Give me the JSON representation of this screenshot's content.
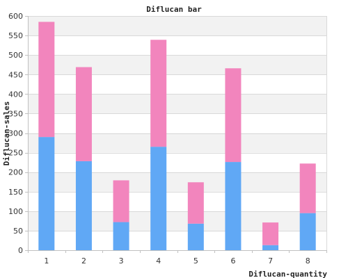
{
  "chart_data": {
    "type": "bar",
    "stacked": true,
    "title": "Diflucan bar",
    "xlabel": "Diflucan-quantity",
    "ylabel": "Diflucan-sales",
    "categories": [
      "1",
      "2",
      "3",
      "4",
      "5",
      "6",
      "7",
      "8"
    ],
    "ylim": [
      0,
      600
    ],
    "yticks": [
      0,
      50,
      100,
      150,
      200,
      250,
      300,
      350,
      400,
      450,
      500,
      550,
      600
    ],
    "grid": true,
    "legend": "none",
    "series": [
      {
        "values": [
          290,
          228,
          72,
          265,
          68,
          226,
          13,
          95
        ],
        "color": "#60a8f5"
      },
      {
        "values": [
          295,
          241,
          107,
          274,
          106,
          240,
          58,
          127
        ],
        "color": "#f285bd"
      }
    ],
    "colors": {
      "band": "#f2f2f2",
      "grid": "#d9d9d9",
      "axis": "#c0c0c0"
    }
  }
}
